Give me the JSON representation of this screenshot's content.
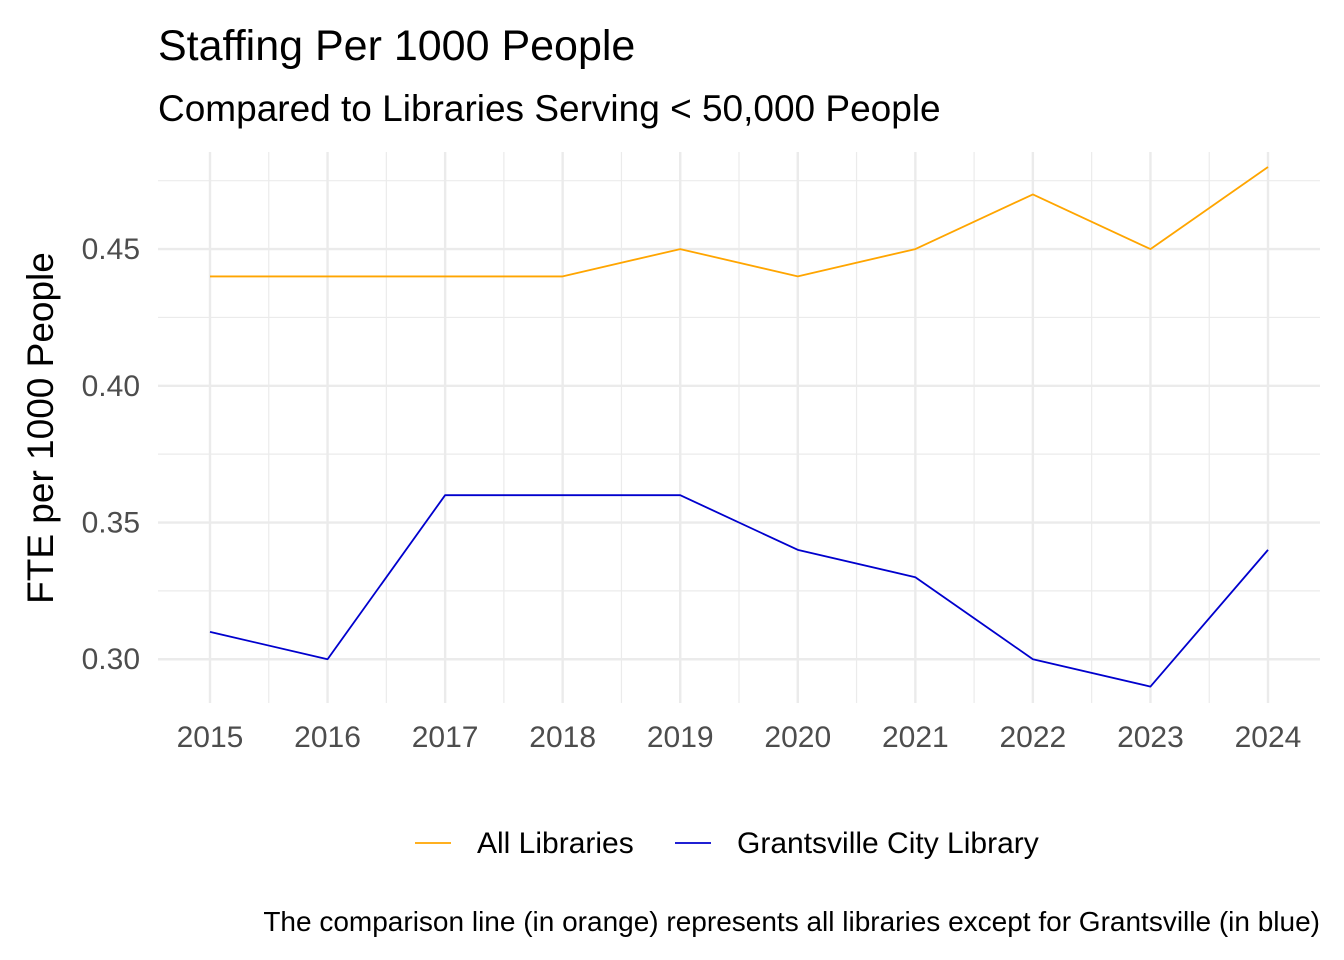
{
  "chart_data": {
    "type": "line",
    "title": "Staffing Per 1000 People",
    "subtitle": "Compared to Libraries Serving < 50,000 People",
    "ylabel": "FTE per 1000 People",
    "xlabel": "",
    "caption": "The comparison line (in orange) represents all libraries except for Grantsville (in blue)",
    "x": [
      2015,
      2016,
      2017,
      2018,
      2019,
      2020,
      2021,
      2022,
      2023,
      2024
    ],
    "x_ticks": [
      "2015",
      "2016",
      "2017",
      "2018",
      "2019",
      "2020",
      "2021",
      "2022",
      "2023",
      "2024"
    ],
    "y_ticks": [
      "0.30",
      "0.35",
      "0.40",
      "0.45"
    ],
    "ylim": [
      0.284,
      0.4855
    ],
    "grid": true,
    "legend_position": "bottom",
    "series": [
      {
        "name": "All Libraries",
        "color": "#FFA500",
        "values": [
          0.44,
          0.44,
          0.44,
          0.44,
          0.45,
          0.44,
          0.45,
          0.47,
          0.45,
          0.48
        ]
      },
      {
        "name": "Grantsville City Library",
        "color": "#0000CD",
        "values": [
          0.31,
          0.3,
          0.36,
          0.36,
          0.36,
          0.34,
          0.33,
          0.3,
          0.29,
          0.34
        ]
      }
    ]
  }
}
